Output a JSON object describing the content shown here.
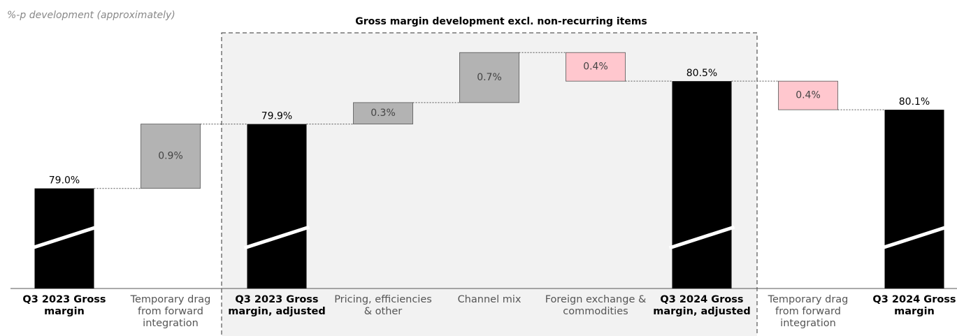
{
  "chart_data": {
    "type": "waterfall",
    "title": "Gross margin development excl. non-recurring items",
    "subtitle": "%-p development (approximately)",
    "categories": [
      "Q3 2023 Gross margin",
      "Temporary drag from forward integration",
      "Q3 2023 Gross margin, adjusted",
      "Pricing, efficiencies & other",
      "Channel mix",
      "Foreign exchange & commodities",
      "Q3 2024 Gross margin, adjusted",
      "Temporary drag from forward integration",
      "Q3 2024 Gross margin"
    ],
    "measure": [
      "total",
      "relative",
      "total",
      "relative",
      "relative",
      "relative",
      "total",
      "relative",
      "total"
    ],
    "values": [
      79.0,
      0.9,
      79.9,
      0.3,
      0.7,
      -0.4,
      80.5,
      -0.4,
      80.1
    ],
    "value_labels": [
      "79.0%",
      "0.9%",
      "79.9%",
      "0.3%",
      "0.7%",
      "0.4%",
      "80.5%",
      "0.4%",
      "80.1%"
    ],
    "colors": {
      "total": "#000000",
      "increase": "#b3b3b3",
      "decrease": "#ffc7ce"
    },
    "ylim": [
      77.6,
      81.0
    ]
  }
}
